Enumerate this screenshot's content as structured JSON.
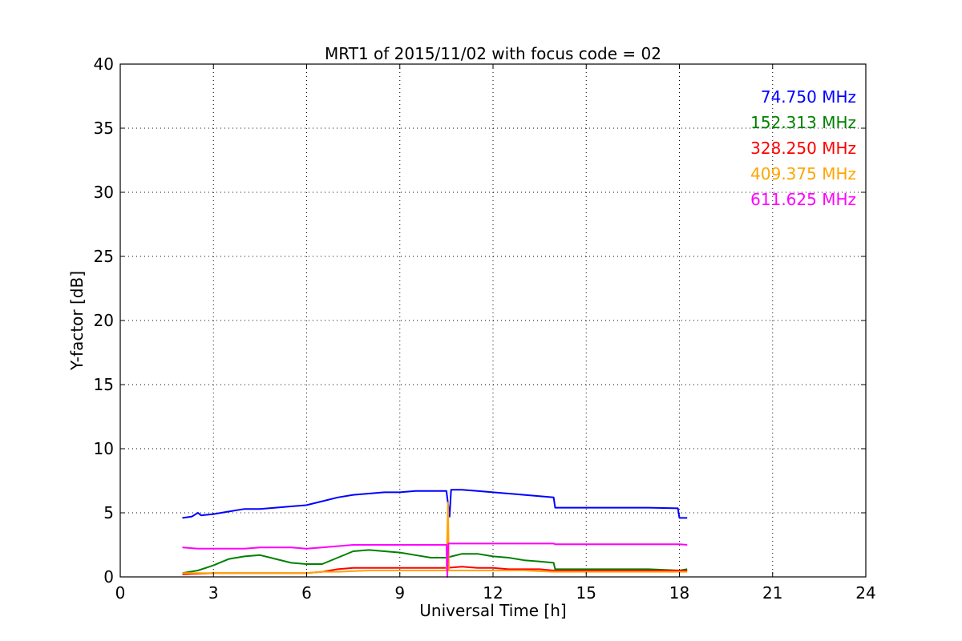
{
  "chart_data": {
    "type": "line",
    "title": "MRT1 of 2015/11/02 with focus code = 02",
    "xlabel": "Universal Time [h]",
    "ylabel": "Y-factor [dB]",
    "xlim": [
      0,
      24
    ],
    "ylim": [
      0,
      40
    ],
    "x_ticks": [
      0,
      3,
      6,
      9,
      12,
      15,
      18,
      21,
      24
    ],
    "y_ticks": [
      0,
      5,
      10,
      15,
      20,
      25,
      30,
      35,
      40
    ],
    "grid": true,
    "legend_position": "top-right",
    "series": [
      {
        "name": "74.750 MHz",
        "color": "#0000ff",
        "points": [
          [
            2.0,
            4.6
          ],
          [
            2.3,
            4.7
          ],
          [
            2.5,
            5.0
          ],
          [
            2.6,
            4.8
          ],
          [
            3.0,
            4.9
          ],
          [
            3.5,
            5.1
          ],
          [
            4.0,
            5.3
          ],
          [
            4.5,
            5.3
          ],
          [
            5.0,
            5.4
          ],
          [
            5.5,
            5.5
          ],
          [
            6.0,
            5.6
          ],
          [
            6.5,
            5.9
          ],
          [
            7.0,
            6.2
          ],
          [
            7.5,
            6.4
          ],
          [
            8.0,
            6.5
          ],
          [
            8.5,
            6.6
          ],
          [
            9.0,
            6.6
          ],
          [
            9.5,
            6.7
          ],
          [
            10.0,
            6.7
          ],
          [
            10.5,
            6.7
          ],
          [
            10.6,
            4.7
          ],
          [
            10.65,
            6.8
          ],
          [
            11.0,
            6.8
          ],
          [
            11.5,
            6.7
          ],
          [
            12.0,
            6.6
          ],
          [
            12.5,
            6.5
          ],
          [
            13.0,
            6.4
          ],
          [
            13.5,
            6.3
          ],
          [
            13.95,
            6.2
          ],
          [
            14.0,
            5.4
          ],
          [
            15.0,
            5.4
          ],
          [
            16.0,
            5.4
          ],
          [
            17.0,
            5.4
          ],
          [
            17.95,
            5.35
          ],
          [
            18.0,
            4.6
          ],
          [
            18.25,
            4.6
          ]
        ]
      },
      {
        "name": "152.313 MHz",
        "color": "#008000",
        "points": [
          [
            2.0,
            0.3
          ],
          [
            2.5,
            0.5
          ],
          [
            3.0,
            0.9
          ],
          [
            3.5,
            1.4
          ],
          [
            4.0,
            1.6
          ],
          [
            4.5,
            1.7
          ],
          [
            5.0,
            1.4
          ],
          [
            5.5,
            1.1
          ],
          [
            6.0,
            1.0
          ],
          [
            6.5,
            1.0
          ],
          [
            7.0,
            1.5
          ],
          [
            7.5,
            2.0
          ],
          [
            8.0,
            2.1
          ],
          [
            8.5,
            2.0
          ],
          [
            9.0,
            1.9
          ],
          [
            9.5,
            1.7
          ],
          [
            10.0,
            1.5
          ],
          [
            10.5,
            1.5
          ],
          [
            11.0,
            1.8
          ],
          [
            11.5,
            1.8
          ],
          [
            12.0,
            1.6
          ],
          [
            12.5,
            1.5
          ],
          [
            13.0,
            1.3
          ],
          [
            13.5,
            1.2
          ],
          [
            13.95,
            1.1
          ],
          [
            14.0,
            0.6
          ],
          [
            15.0,
            0.6
          ],
          [
            16.0,
            0.6
          ],
          [
            17.0,
            0.6
          ],
          [
            18.0,
            0.5
          ],
          [
            18.25,
            0.6
          ]
        ]
      },
      {
        "name": "328.250 MHz",
        "color": "#ff0000",
        "points": [
          [
            2.0,
            0.2
          ],
          [
            3.0,
            0.3
          ],
          [
            4.0,
            0.3
          ],
          [
            5.0,
            0.3
          ],
          [
            6.0,
            0.3
          ],
          [
            6.5,
            0.4
          ],
          [
            7.0,
            0.6
          ],
          [
            7.5,
            0.7
          ],
          [
            8.0,
            0.7
          ],
          [
            8.5,
            0.7
          ],
          [
            9.0,
            0.7
          ],
          [
            9.5,
            0.7
          ],
          [
            10.0,
            0.7
          ],
          [
            10.5,
            0.7
          ],
          [
            11.0,
            0.8
          ],
          [
            11.5,
            0.7
          ],
          [
            12.0,
            0.7
          ],
          [
            12.5,
            0.6
          ],
          [
            13.0,
            0.6
          ],
          [
            13.5,
            0.6
          ],
          [
            13.95,
            0.5
          ],
          [
            14.0,
            0.5
          ],
          [
            16.0,
            0.5
          ],
          [
            18.0,
            0.5
          ],
          [
            18.25,
            0.5
          ]
        ]
      },
      {
        "name": "409.375 MHz",
        "color": "#ffa500",
        "points": [
          [
            2.0,
            0.3
          ],
          [
            3.0,
            0.3
          ],
          [
            4.0,
            0.3
          ],
          [
            5.0,
            0.3
          ],
          [
            6.0,
            0.3
          ],
          [
            6.5,
            0.4
          ],
          [
            7.0,
            0.4
          ],
          [
            8.0,
            0.5
          ],
          [
            9.0,
            0.5
          ],
          [
            10.0,
            0.5
          ],
          [
            10.5,
            0.5
          ],
          [
            10.55,
            5.8
          ],
          [
            10.58,
            0.5
          ],
          [
            11.0,
            0.5
          ],
          [
            12.0,
            0.5
          ],
          [
            13.0,
            0.5
          ],
          [
            13.95,
            0.4
          ],
          [
            14.0,
            0.4
          ],
          [
            16.0,
            0.4
          ],
          [
            18.0,
            0.4
          ],
          [
            18.25,
            0.4
          ]
        ]
      },
      {
        "name": "611.625 MHz",
        "color": "#ff00ff",
        "points": [
          [
            2.0,
            2.3
          ],
          [
            2.5,
            2.2
          ],
          [
            3.0,
            2.2
          ],
          [
            3.5,
            2.2
          ],
          [
            4.0,
            2.2
          ],
          [
            4.5,
            2.3
          ],
          [
            5.0,
            2.3
          ],
          [
            5.5,
            2.3
          ],
          [
            6.0,
            2.2
          ],
          [
            6.5,
            2.3
          ],
          [
            7.0,
            2.4
          ],
          [
            7.5,
            2.5
          ],
          [
            8.0,
            2.5
          ],
          [
            8.5,
            2.5
          ],
          [
            9.0,
            2.5
          ],
          [
            9.5,
            2.5
          ],
          [
            10.0,
            2.5
          ],
          [
            10.5,
            2.5
          ],
          [
            10.53,
            0.0
          ],
          [
            10.56,
            2.6
          ],
          [
            11.0,
            2.6
          ],
          [
            11.5,
            2.6
          ],
          [
            12.0,
            2.6
          ],
          [
            12.5,
            2.6
          ],
          [
            13.0,
            2.6
          ],
          [
            13.5,
            2.6
          ],
          [
            13.95,
            2.6
          ],
          [
            14.0,
            2.55
          ],
          [
            16.0,
            2.55
          ],
          [
            18.0,
            2.55
          ],
          [
            18.25,
            2.5
          ]
        ]
      }
    ]
  }
}
